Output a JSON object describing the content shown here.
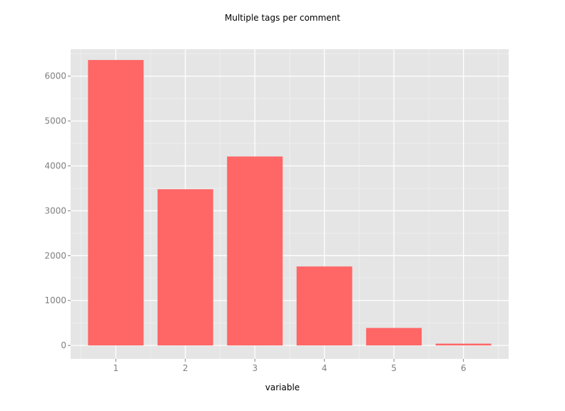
{
  "chart_data": {
    "type": "bar",
    "title": "Multiple tags per comment",
    "xlabel": "variable",
    "ylabel": "",
    "categories": [
      "1",
      "2",
      "3",
      "4",
      "5",
      "6"
    ],
    "values": [
      6360,
      3480,
      4210,
      1760,
      390,
      40
    ],
    "ylim": [
      -300,
      6600
    ],
    "xlim": [
      0.35,
      6.65
    ],
    "yticks": [
      0,
      1000,
      2000,
      3000,
      4000,
      5000,
      6000
    ],
    "xticks": [
      1,
      2,
      3,
      4,
      5,
      6
    ],
    "grid": true,
    "legend": "none",
    "colors": {
      "bar": "#ff6666",
      "panel": "#e5e5e5",
      "grid_major": "#ffffff",
      "grid_minor": "#f0f0f0"
    }
  }
}
